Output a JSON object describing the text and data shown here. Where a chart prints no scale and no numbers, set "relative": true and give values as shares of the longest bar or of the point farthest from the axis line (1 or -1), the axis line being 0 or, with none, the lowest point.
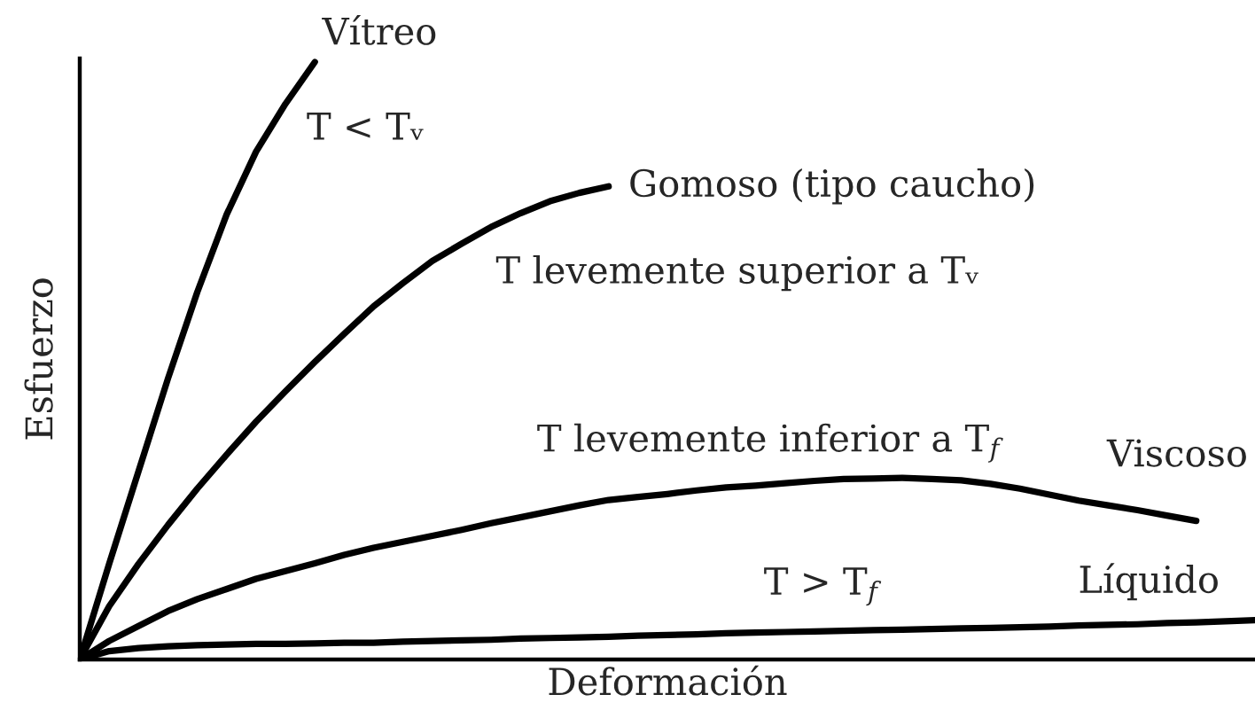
{
  "chart_data": {
    "type": "line",
    "relative": true,
    "xlabel": "Deformación",
    "ylabel": "Esfuerzo",
    "tick_labels": false,
    "line_style": "solid",
    "categories": [
      null,
      null,
      null,
      null,
      null,
      null,
      null,
      null,
      null,
      null,
      null,
      null,
      null,
      null,
      null,
      null,
      null,
      null,
      null,
      null,
      null,
      null,
      null,
      null,
      null,
      null,
      null,
      null,
      null,
      null,
      null,
      null,
      null,
      null,
      null,
      null,
      null,
      null,
      null,
      null,
      null
    ],
    "series": [
      {
        "name": "Vítreo",
        "color": "#000000",
        "values": [
          0,
          0.16,
          0.315,
          0.47,
          0.615,
          0.745,
          0.85,
          0.93,
          1.0,
          null,
          null,
          null,
          null,
          null,
          null,
          null,
          null,
          null,
          null,
          null,
          null,
          null,
          null,
          null,
          null,
          null,
          null,
          null,
          null,
          null,
          null,
          null,
          null,
          null,
          null,
          null,
          null,
          null,
          null,
          null,
          null
        ]
      },
      {
        "name": "Gomoso (tipo caucho)",
        "color": "#000000",
        "values": [
          0,
          0.089,
          0.16,
          0.225,
          0.286,
          0.343,
          0.398,
          0.449,
          0.498,
          0.545,
          0.591,
          0.63,
          0.667,
          0.696,
          0.724,
          0.747,
          0.767,
          0.781,
          0.792,
          null,
          null,
          null,
          null,
          null,
          null,
          null,
          null,
          null,
          null,
          null,
          null,
          null,
          null,
          null,
          null,
          null,
          null,
          null,
          null,
          null,
          null
        ]
      },
      {
        "name": "Viscoso",
        "color": "#000000",
        "values": [
          0,
          0.031,
          0.056,
          0.081,
          0.101,
          0.118,
          0.135,
          0.148,
          0.161,
          0.175,
          0.187,
          0.197,
          0.207,
          0.217,
          0.228,
          0.238,
          0.248,
          0.258,
          0.267,
          0.272,
          0.277,
          0.283,
          0.288,
          0.291,
          0.295,
          0.299,
          0.302,
          0.303,
          0.304,
          0.302,
          0.3,
          0.294,
          0.286,
          0.276,
          0.266,
          0.258,
          0.25,
          0.241,
          0.232,
          null,
          null
        ]
      },
      {
        "name": "Líquido",
        "color": "#000000",
        "values": [
          0,
          0.014,
          0.019,
          0.022,
          0.024,
          0.025,
          0.026,
          0.026,
          0.027,
          0.028,
          0.028,
          0.03,
          0.031,
          0.032,
          0.033,
          0.035,
          0.036,
          0.037,
          0.038,
          0.04,
          0.041,
          0.042,
          0.044,
          0.045,
          0.046,
          0.047,
          0.048,
          0.049,
          0.05,
          0.051,
          0.052,
          0.053,
          0.054,
          0.055,
          0.057,
          0.058,
          0.059,
          0.061,
          0.062,
          0.064,
          0.066
        ]
      }
    ],
    "annotations": [
      "T < Tᵥ",
      "T levemente superior a Tᵥ",
      "T levemente inferior a T$_{f}$",
      "T > T$_{f}$"
    ]
  }
}
